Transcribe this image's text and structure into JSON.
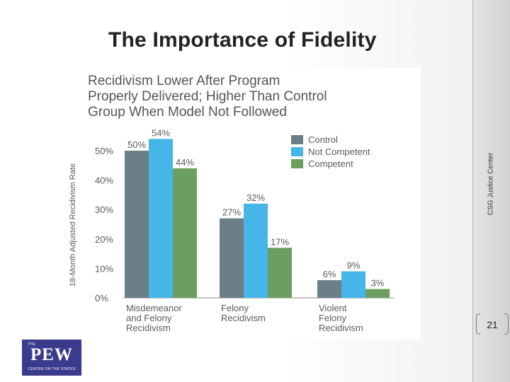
{
  "slide": {
    "title": "The Importance of Fidelity",
    "side_label": "CSG Justice Center",
    "page_number": "21",
    "logo": {
      "small_text": "THE",
      "brand": "PEW",
      "tagline": "CENTER ON THE STATES"
    }
  },
  "colors": {
    "control": "#6b7f86",
    "not_competent": "#46b5e8",
    "competent": "#6a9f5f"
  },
  "chart_data": {
    "type": "bar",
    "title_lines": [
      "Recidivism Lower After Program",
      "Properly Delivered; Higher Than Control",
      "Group When Model Not Followed"
    ],
    "ylabel": "18-Month Adjusted Recidivism Rate",
    "ylim": [
      0,
      50
    ],
    "yticks": [
      "0%",
      "10%",
      "20%",
      "30%",
      "40%",
      "50%"
    ],
    "categories": [
      [
        "Misdemeanor",
        "and Felony",
        "Recidivism"
      ],
      [
        "Felony",
        "Recidivism"
      ],
      [
        "Violent",
        "Felony",
        "Recidivism"
      ]
    ],
    "series": [
      {
        "name": "Control",
        "values": [
          50,
          27,
          6
        ],
        "labels": [
          "50%",
          "27%",
          "6%"
        ]
      },
      {
        "name": "Not Competent",
        "values": [
          54,
          32,
          9
        ],
        "labels": [
          "54%",
          "32%",
          "9%"
        ]
      },
      {
        "name": "Competent",
        "values": [
          44,
          17,
          3
        ],
        "labels": [
          "44%",
          "17%",
          "3%"
        ]
      }
    ],
    "legend_position": "top-right"
  }
}
